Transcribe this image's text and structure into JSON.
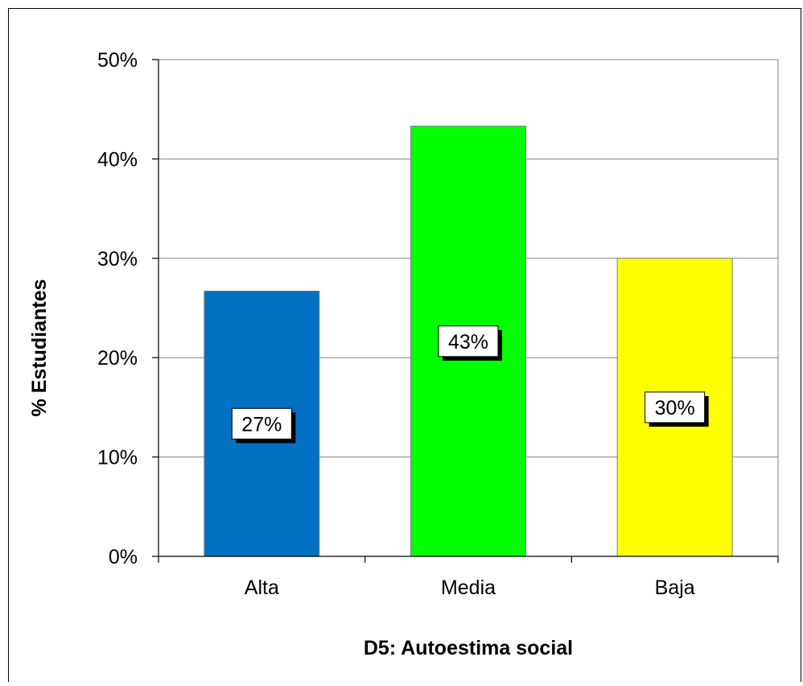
{
  "chart_data": {
    "type": "bar",
    "categories": [
      "Alta",
      "Media",
      "Baja"
    ],
    "values": [
      26.7,
      43.3,
      30.0
    ],
    "data_labels": [
      "27%",
      "43%",
      "30%"
    ],
    "colors": [
      "#0070C0",
      "#00FF00",
      "#FFFF00"
    ],
    "ylim": [
      0,
      50
    ],
    "yticks": [
      "0%",
      "10%",
      "20%",
      "30%",
      "40%",
      "50%"
    ],
    "ylabel": "% Estudiantes",
    "xlabel": "D5: Autoestima social",
    "title": "",
    "grid": true,
    "legend": "none"
  }
}
